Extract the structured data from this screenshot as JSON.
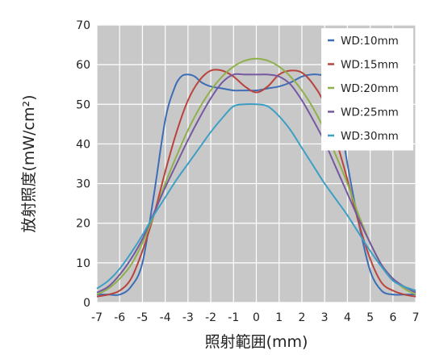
{
  "chart_data": {
    "type": "line",
    "xlabel": "照射範囲(mm)",
    "ylabel": "放射照度(mW/cm²)",
    "xlim": [
      -7,
      7
    ],
    "ylim": [
      0,
      70
    ],
    "xticks": [
      "-7",
      "-6",
      "-5",
      "-4",
      "-3",
      "-2",
      "-1",
      "0",
      "1",
      "2",
      "3",
      "4",
      "5",
      "6",
      "7"
    ],
    "yticks": [
      "0",
      "10",
      "20",
      "30",
      "40",
      "50",
      "60",
      "70"
    ],
    "grid": true,
    "legend_position": "top-right",
    "background": "#c8c8c8",
    "series": [
      {
        "name": "WD:10mm",
        "color": "#3d6db5",
        "x": [
          -7,
          -6.5,
          -6,
          -5.5,
          -5,
          -4.5,
          -4,
          -3.6,
          -3.3,
          -3,
          -2.7,
          -2.4,
          -2,
          -1.5,
          -1,
          -0.5,
          0,
          0.5,
          1,
          1.5,
          2,
          2.4,
          2.7,
          3,
          3.3,
          3.6,
          4,
          4.5,
          5,
          5.5,
          6,
          6.5,
          7
        ],
        "y": [
          2,
          2,
          2,
          4,
          10,
          27,
          46,
          54,
          57,
          57.5,
          57,
          55.5,
          54.5,
          54,
          53.5,
          53.5,
          53.5,
          54,
          54.5,
          55.5,
          57,
          57.5,
          57.5,
          57,
          54.5,
          49,
          35,
          20,
          8,
          3,
          2,
          2,
          2
        ]
      },
      {
        "name": "WD:15mm",
        "color": "#b8443d",
        "x": [
          -7,
          -6.5,
          -6,
          -5.5,
          -5,
          -4.5,
          -4,
          -3.5,
          -3,
          -2.5,
          -2,
          -1.5,
          -1,
          -0.5,
          0,
          0.5,
          1,
          1.5,
          2,
          2.5,
          3,
          3.5,
          4,
          4.5,
          5,
          5.5,
          6,
          6.5,
          7
        ],
        "y": [
          1.5,
          2,
          3,
          6,
          13,
          22,
          33,
          43,
          51,
          56,
          58.5,
          58.5,
          57,
          54.5,
          53,
          54.5,
          57.5,
          58.5,
          58,
          55,
          50,
          41,
          31,
          20,
          11,
          5,
          3,
          2,
          1.5
        ]
      },
      {
        "name": "WD:20mm",
        "color": "#8fb04a",
        "x": [
          -7,
          -6.5,
          -6,
          -5.5,
          -5,
          -4.5,
          -4,
          -3.5,
          -3,
          -2.5,
          -2,
          -1.5,
          -1,
          -0.5,
          0,
          0.5,
          1,
          1.5,
          2,
          2.5,
          3,
          3.5,
          4,
          4.5,
          5,
          5.5,
          6,
          6.5,
          7
        ],
        "y": [
          2,
          3.5,
          6,
          9.5,
          15,
          22,
          30,
          37,
          43.5,
          49,
          53.5,
          57,
          59.5,
          61,
          61.5,
          61,
          59.5,
          57,
          53.5,
          49,
          43.5,
          37,
          30,
          22,
          15,
          9.5,
          6,
          3.5,
          2
        ]
      },
      {
        "name": "WD:25mm",
        "color": "#7559a0",
        "x": [
          -7,
          -6.5,
          -6,
          -5.5,
          -5,
          -4.5,
          -4,
          -3.5,
          -3,
          -2.5,
          -2,
          -1.5,
          -1,
          -0.5,
          0,
          0.5,
          1,
          1.5,
          2,
          2.5,
          3,
          3.5,
          4,
          4.5,
          5,
          5.5,
          6,
          6.5,
          7
        ],
        "y": [
          2.5,
          4,
          7,
          11,
          16,
          22.5,
          29,
          35,
          41,
          46.5,
          51.5,
          55.5,
          57.5,
          57.5,
          57.5,
          57.5,
          57,
          55,
          51,
          46,
          40.5,
          34,
          27.5,
          21,
          15,
          9.5,
          6,
          4,
          2.5
        ]
      },
      {
        "name": "WD:30mm",
        "color": "#3e9fc5",
        "x": [
          -7,
          -6.5,
          -6,
          -5.5,
          -5,
          -4.5,
          -4,
          -3.5,
          -3,
          -2.5,
          -2,
          -1.5,
          -1,
          -0.5,
          0,
          0.5,
          1,
          1.5,
          2,
          2.5,
          3,
          3.5,
          4,
          4.5,
          5,
          5.5,
          6,
          6.5,
          7
        ],
        "y": [
          3.5,
          5.5,
          8.5,
          12.5,
          17,
          22,
          26.5,
          31,
          35,
          39,
          43,
          46.5,
          49.5,
          50,
          50,
          49.5,
          47,
          43.5,
          39,
          34.5,
          30,
          26,
          22,
          17.5,
          13,
          9,
          5.5,
          4,
          3
        ]
      }
    ]
  }
}
